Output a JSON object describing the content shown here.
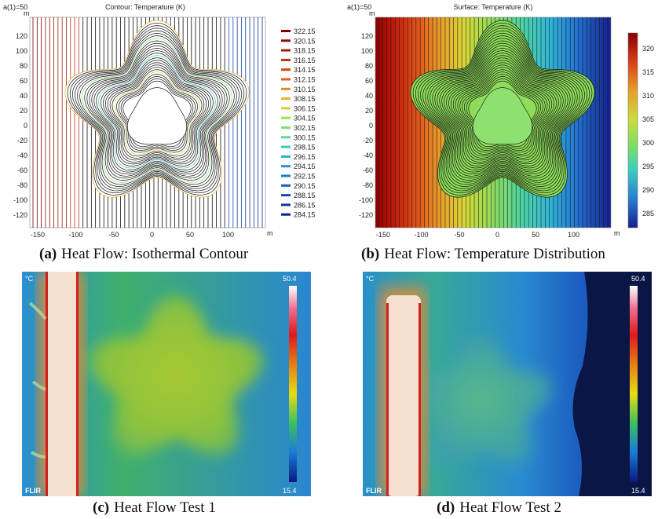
{
  "panel_a": {
    "param_label": "a(1)=50",
    "title": "Contour: Temperature (K)",
    "y_unit": "m",
    "x_unit": "m",
    "x_ticks": [
      "-150",
      "-100",
      "-50",
      "0",
      "50",
      "100"
    ],
    "y_ticks": [
      "120",
      "100",
      "80",
      "60",
      "40",
      "20",
      "0",
      "-20",
      "-40",
      "-60",
      "-80",
      "-100",
      "-120"
    ],
    "legend": [
      "322.15",
      "320.15",
      "318.15",
      "316.15",
      "314.15",
      "312.15",
      "310.15",
      "308.15",
      "306.15",
      "304.15",
      "302.15",
      "300.15",
      "298.15",
      "296.15",
      "294.15",
      "292.15",
      "290.15",
      "288.15",
      "286.15",
      "284.15"
    ],
    "legend_colors": [
      "#7a0000",
      "#8f0c06",
      "#a41e0a",
      "#ba320e",
      "#d04a12",
      "#e06416",
      "#e88a20",
      "#e6b32a",
      "#cfd23a",
      "#a9e04c",
      "#82e06a",
      "#5cd894",
      "#3ccbb8",
      "#2ab0d6",
      "#2493dc",
      "#1f78cf",
      "#1b5ec0",
      "#1747ad",
      "#13339a",
      "#0f2287"
    ],
    "caption_label": "(a)",
    "caption_text": "Heat Flow: Isothermal Contour"
  },
  "panel_b": {
    "param_label": "a(1)=50",
    "title": "Surface: Temperature (K)",
    "y_unit": "m",
    "x_unit": "m",
    "x_ticks": [
      "-150",
      "-100",
      "-50",
      "0",
      "50",
      "100"
    ],
    "y_ticks": [
      "120",
      "100",
      "80",
      "60",
      "40",
      "20",
      "0",
      "-20",
      "-40",
      "-60",
      "-80",
      "-100",
      "-120"
    ],
    "colorbar_ticks": [
      "320",
      "315",
      "310",
      "305",
      "300",
      "295",
      "290",
      "285"
    ],
    "caption_label": "(b)",
    "caption_text": "Heat Flow: Temperature Distribution"
  },
  "panel_c": {
    "unit": "°C",
    "max": "50.4",
    "min": "15.4",
    "brand": "FLIR",
    "caption_label": "(c)",
    "caption_text": "Heat Flow Test 1"
  },
  "panel_d": {
    "unit": "°C",
    "max": "50.4",
    "min": "15.4",
    "brand": "FLIR",
    "caption_label": "(d)",
    "caption_text": "Heat Flow Test 2"
  }
}
